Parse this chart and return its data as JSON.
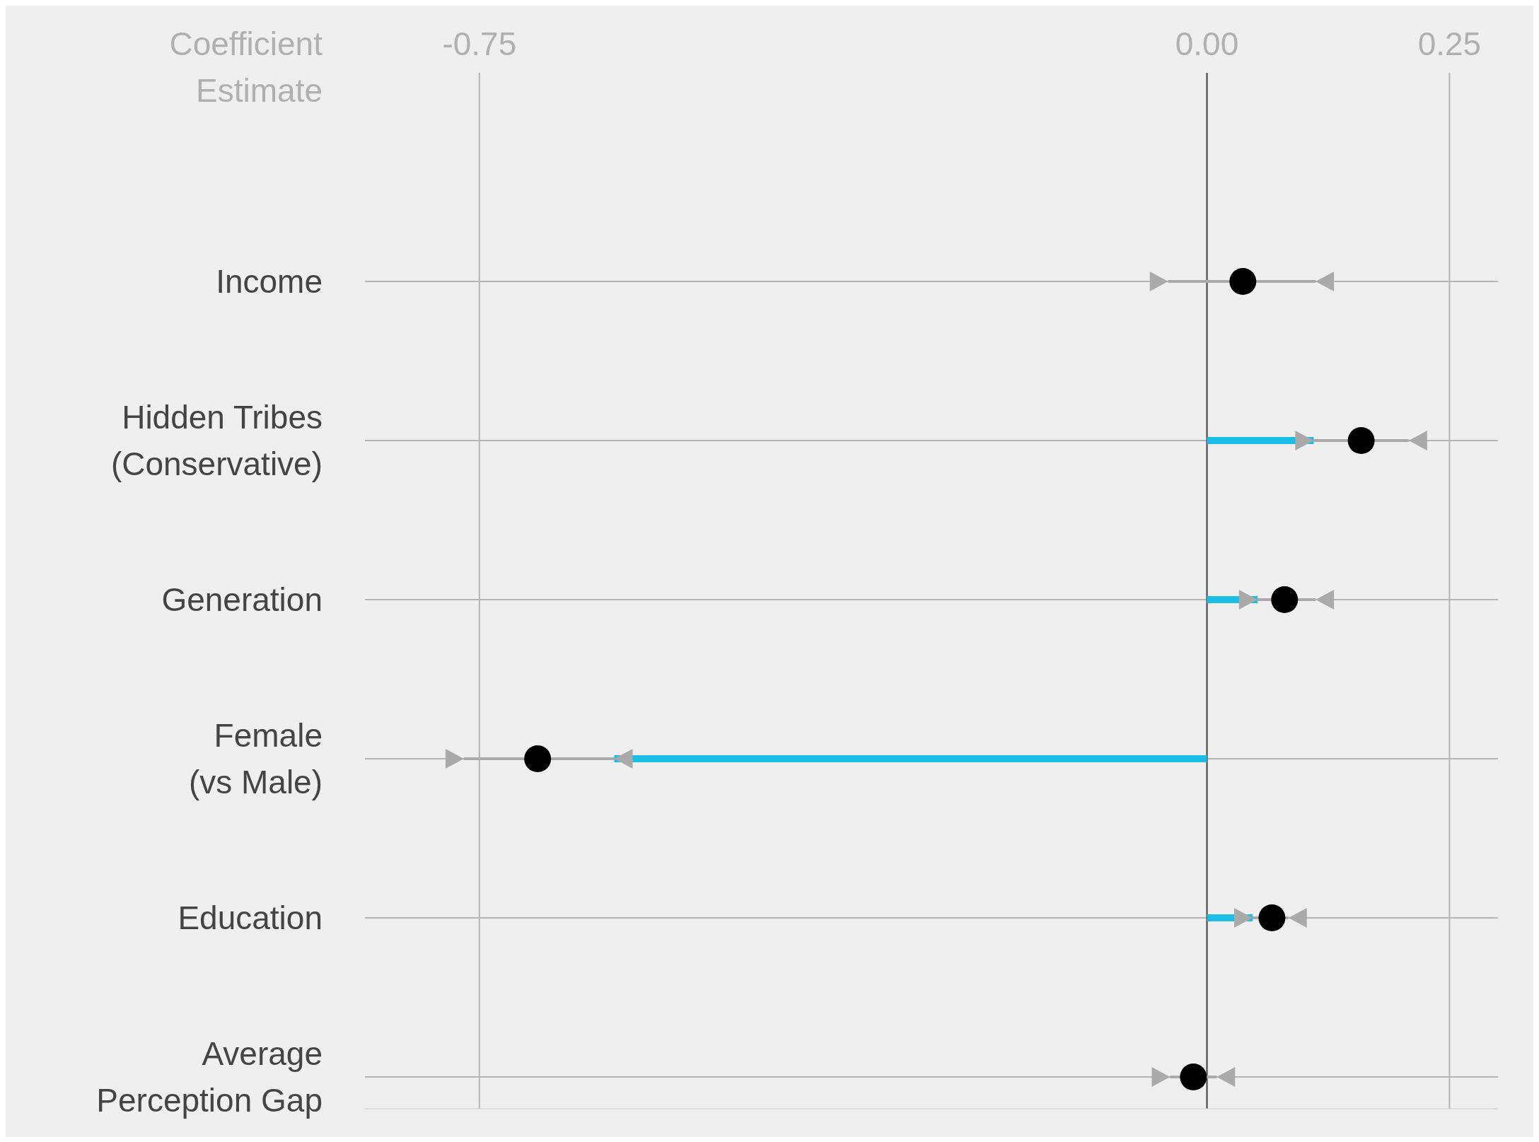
{
  "chart_data": {
    "type": "scatter",
    "orientation": "horizontal",
    "xlabel": "Coefficient Estimate",
    "categories": [
      "Income",
      "Hidden Tribes\n(Conservative)",
      "Generation",
      "Female\n(vs Male)",
      "Education",
      "Average\nPerception Gap"
    ],
    "xlim": [
      -0.868,
      0.3
    ],
    "xticks": [
      {
        "value": -0.75,
        "label": "-0.75"
      },
      {
        "value": 0,
        "label": "0.00"
      },
      {
        "value": 0.25,
        "label": "0.25"
      }
    ],
    "grid": true,
    "marker": "circle",
    "ref_lines": [
      {
        "axis": "x",
        "value": 0,
        "color": "#4d4d4d"
      }
    ],
    "series": [
      {
        "type": "bar",
        "color": "#1ebde6",
        "values": [
          null,
          0.11,
          0.052,
          -0.611,
          0.047,
          null
        ]
      },
      {
        "color": "#000000",
        "values": [
          0.037,
          0.159,
          0.08,
          -0.69,
          0.067,
          -0.014
        ],
        "errors": [
          [
            -0.04,
            0.112
          ],
          [
            0.11,
            0.208
          ],
          [
            0.052,
            0.112
          ],
          [
            -0.766,
            -0.611
          ],
          [
            0.047,
            0.084
          ],
          [
            -0.038,
            0.01
          ]
        ]
      }
    ]
  }
}
